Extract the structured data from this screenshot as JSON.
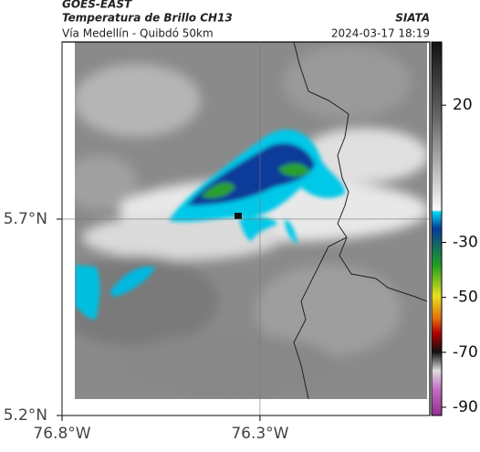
{
  "header": {
    "title": "GOES-EAST",
    "subtitle": "Temperatura de Brillo CH13",
    "source": "SIATA",
    "location": "Vía Medellín - Quibdó 50km",
    "timestamp": "2024-03-17 18:19"
  },
  "map": {
    "ylim": [
      5.2,
      6.151
    ],
    "xlim": [
      -76.8,
      -75.871
    ],
    "yticks": [
      {
        "value": 5.7,
        "label": "5.7°N"
      },
      {
        "value": 5.2,
        "label": "5.2°N"
      }
    ],
    "xticks": [
      {
        "value": -76.8,
        "label": "76.8°W"
      },
      {
        "value": -76.3,
        "label": "76.3°W"
      }
    ],
    "grid": true
  },
  "colorbar": {
    "lim": [
      -93,
      43
    ],
    "ticks": [
      20,
      -30,
      -50,
      -70,
      -90
    ]
  }
}
